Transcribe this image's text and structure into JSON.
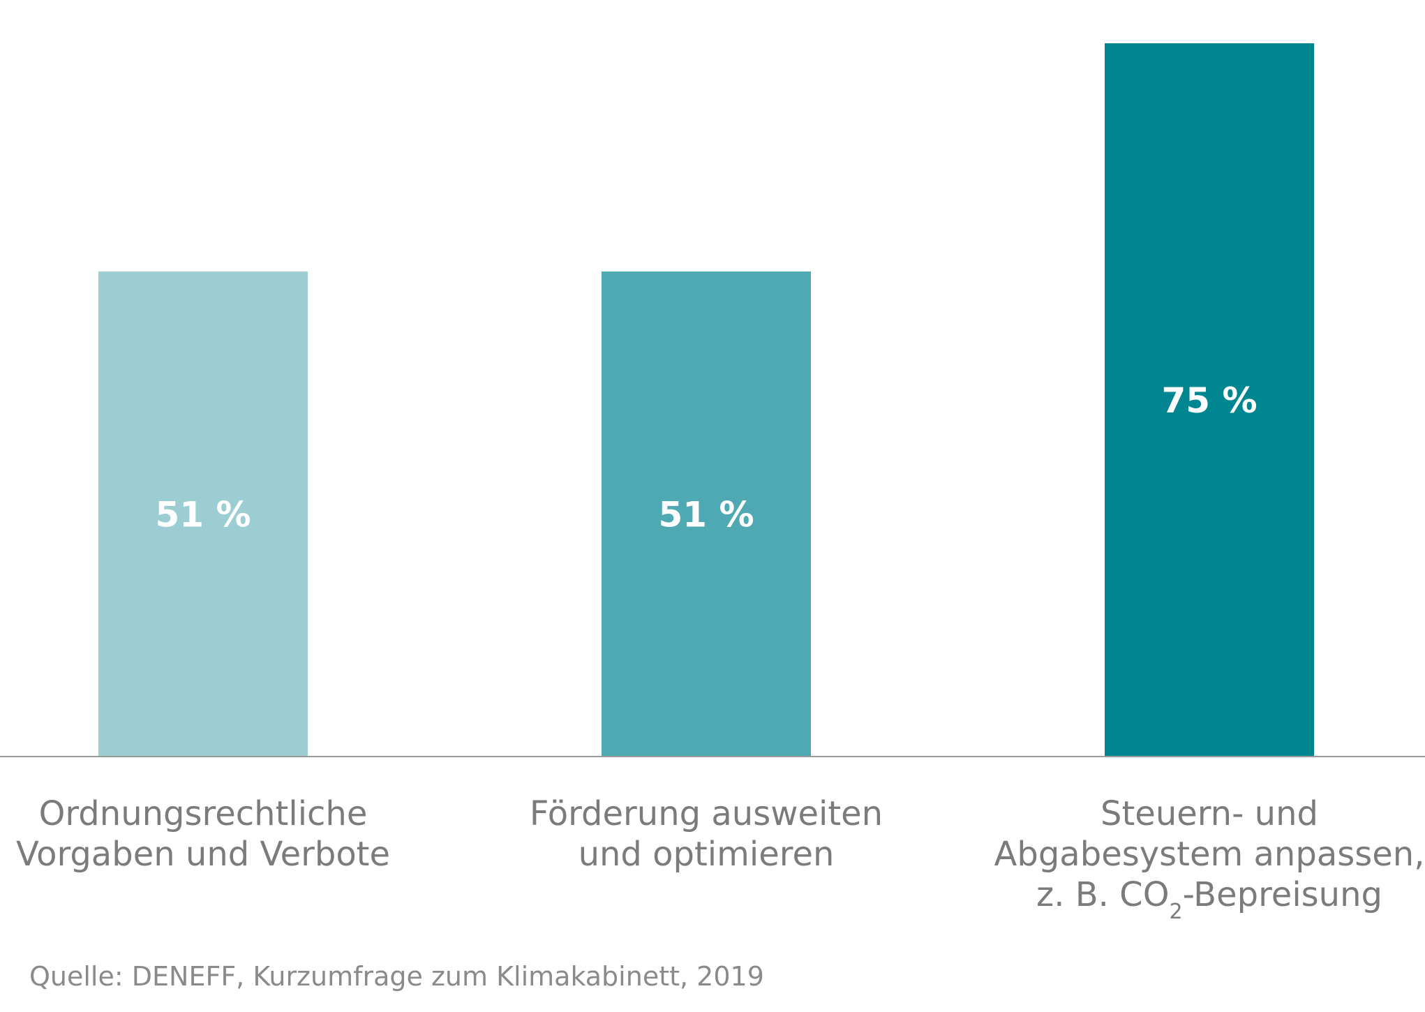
{
  "chart_data": {
    "type": "bar",
    "categories": [
      "Ordnungsrechtliche Vorgaben und Verbote",
      "Förderung ausweiten und optimieren",
      "Steuern- und Abgabesystem anpassen, z. B. CO2-Bepreisung"
    ],
    "category_lines": [
      [
        "Ordnungsrechtliche",
        "Vorgaben und Verbote"
      ],
      [
        "Förderung ausweiten",
        "und optimieren"
      ],
      [
        "Steuern- und",
        "Abgabesystem anpassen,",
        "z. B. CO2-Bepreisung"
      ]
    ],
    "values": [
      51,
      51,
      75
    ],
    "value_labels": [
      "51 %",
      "51 %",
      "75 %"
    ],
    "colors": [
      "#9bcdd3",
      "#4ea9b3",
      "#008690"
    ],
    "ylim": [
      0,
      75
    ],
    "title": "",
    "xlabel": "",
    "ylabel": "",
    "grid": false,
    "legend": false
  },
  "source": "Quelle: DENEFF, Kurzumfrage zum Klimakabinett, 2019"
}
